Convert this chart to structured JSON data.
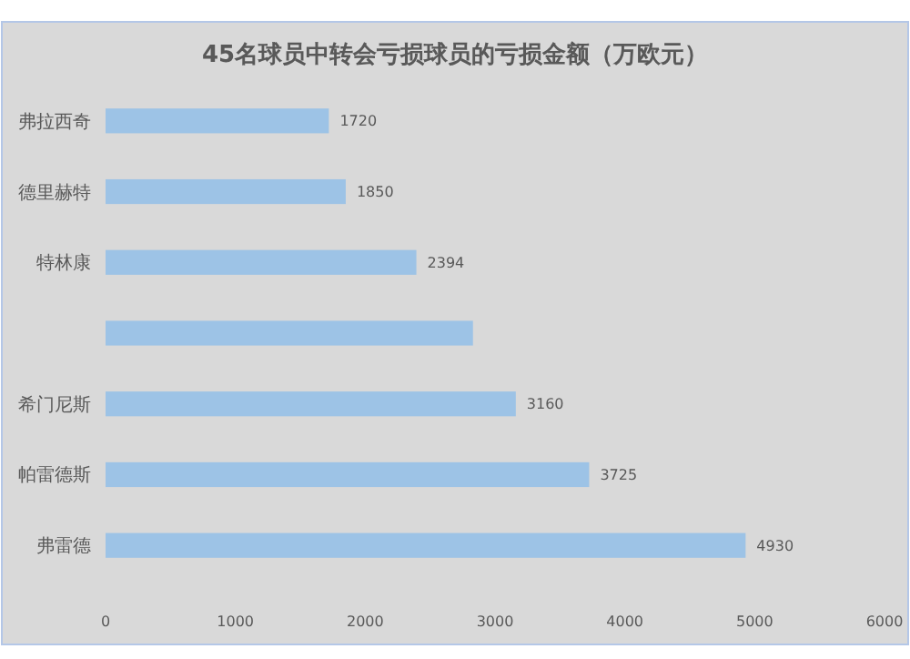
{
  "chart_data": {
    "type": "bar",
    "orientation": "horizontal",
    "title": "45名球员中转会亏损球员的亏损金额（万欧元）",
    "categories": [
      "弗拉西奇",
      "德里赫特",
      "特林康",
      null,
      "希门尼斯",
      "帕雷德斯",
      "弗雷德"
    ],
    "values": [
      1720,
      1850,
      2394,
      2830,
      3160,
      3725,
      4930
    ],
    "value_labels": [
      "1720",
      "1850",
      "2394",
      null,
      "3160",
      "3725",
      "4930"
    ],
    "color": "#9dc3e6",
    "xlim": [
      0,
      6000
    ],
    "xticks": [
      0,
      1000,
      2000,
      3000,
      4000,
      5000,
      6000
    ],
    "grid": false
  }
}
